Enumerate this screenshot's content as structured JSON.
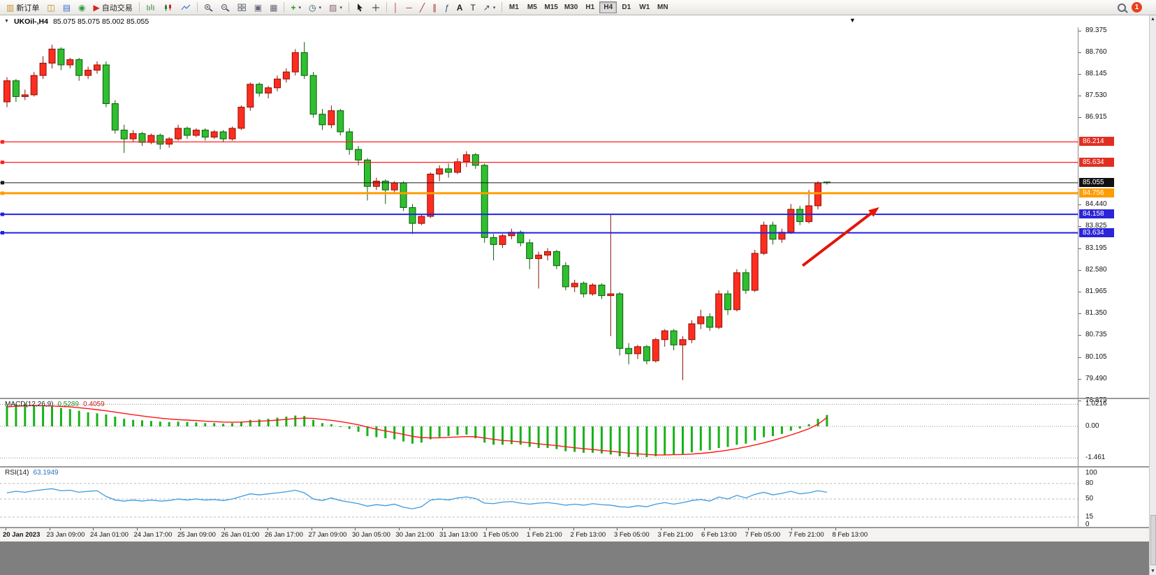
{
  "toolbar": {
    "new_order": "新订单",
    "autotrade": "自动交易",
    "timeframes": [
      "M1",
      "M5",
      "M15",
      "M30",
      "H1",
      "H4",
      "D1",
      "W1",
      "MN"
    ],
    "active_timeframe": "H4",
    "notification_count": "1"
  },
  "chart_header": {
    "symbol_period": "UKOil-,H4",
    "ohlc": "85.075 85.075 85.002 85.055"
  },
  "price_axis": {
    "badges": [
      {
        "text": "86.214",
        "color": "#e02f22"
      },
      {
        "text": "85.634",
        "color": "#e02f22"
      },
      {
        "text": "85.055",
        "color": "#111111"
      },
      {
        "text": "84.756",
        "color": "#ff9d00"
      },
      {
        "text": "84.158",
        "color": "#2b24d8"
      },
      {
        "text": "83.634",
        "color": "#2b24d8"
      }
    ]
  },
  "chart_data": [
    {
      "type": "candlestick",
      "symbol": "UKOil-",
      "timeframe": "H4",
      "title": "UKOil-,H4",
      "ohlc_display": "85.075 85.075 85.002 85.055",
      "ylim": [
        78.95,
        89.45
      ],
      "colors": {
        "up": {
          "fill": "#ff2d1f",
          "stroke": "#8a1006"
        },
        "down": {
          "fill": "#2fbf2f",
          "stroke": "#0b5c0b"
        }
      },
      "y_tick_labels": [
        "89.375",
        "88.760",
        "88.145",
        "87.530",
        "86.915",
        "84.440",
        "83.825",
        "83.195",
        "82.580",
        "81.965",
        "81.350",
        "80.735",
        "80.105",
        "79.490",
        "78.875"
      ],
      "hlines": [
        {
          "price": 86.214,
          "color": "#ff2020",
          "width": 1.2
        },
        {
          "price": 85.634,
          "color": "#ff2020",
          "width": 1.2
        },
        {
          "price": 85.055,
          "color": "#1a1a1a",
          "width": 1
        },
        {
          "price": 84.756,
          "color": "#ff9d00",
          "width": 3
        },
        {
          "price": 84.158,
          "color": "#2222e0",
          "width": 2
        },
        {
          "price": 83.634,
          "color": "#2222e0",
          "width": 2
        }
      ],
      "arrow": {
        "x1_bar": 88.3,
        "y1_price": 82.7,
        "x2_bar": 96.8,
        "y2_price": 84.36,
        "color": "#e41409"
      },
      "x_tick_labels": [
        "20 Jan 2023",
        "23 Jan 09:00",
        "24 Jan 01:00",
        "24 Jan 17:00",
        "25 Jan 09:00",
        "26 Jan 01:00",
        "26 Jan 17:00",
        "27 Jan 09:00",
        "30 Jan 05:00",
        "30 Jan 21:00",
        "31 Jan 13:00",
        "1 Feb 05:00",
        "1 Feb 21:00",
        "2 Feb 13:00",
        "3 Feb 05:00",
        "3 Feb 21:00",
        "6 Feb 13:00",
        "7 Feb 05:00",
        "7 Feb 21:00",
        "8 Feb 13:00"
      ],
      "candles": [
        [
          87.35,
          88.05,
          87.2,
          87.95
        ],
        [
          87.95,
          88.0,
          87.35,
          87.5
        ],
        [
          87.5,
          87.7,
          87.4,
          87.55
        ],
        [
          87.55,
          88.2,
          87.5,
          88.1
        ],
        [
          88.1,
          88.65,
          88.0,
          88.45
        ],
        [
          88.45,
          88.97,
          88.3,
          88.85
        ],
        [
          88.85,
          88.9,
          88.25,
          88.4
        ],
        [
          88.4,
          88.6,
          88.3,
          88.55
        ],
        [
          88.55,
          88.6,
          87.95,
          88.1
        ],
        [
          88.1,
          88.35,
          88.0,
          88.25
        ],
        [
          88.25,
          88.5,
          88.15,
          88.4
        ],
        [
          88.4,
          88.5,
          87.2,
          87.3
        ],
        [
          87.3,
          87.4,
          86.45,
          86.55
        ],
        [
          86.55,
          86.7,
          85.9,
          86.3
        ],
        [
          86.3,
          86.55,
          86.2,
          86.45
        ],
        [
          86.45,
          86.5,
          86.1,
          86.2
        ],
        [
          86.2,
          86.45,
          86.15,
          86.4
        ],
        [
          86.4,
          86.45,
          86.0,
          86.15
        ],
        [
          86.15,
          86.35,
          86.05,
          86.3
        ],
        [
          86.3,
          86.7,
          86.25,
          86.6
        ],
        [
          86.6,
          86.65,
          86.3,
          86.4
        ],
        [
          86.4,
          86.6,
          86.35,
          86.55
        ],
        [
          86.55,
          86.6,
          86.25,
          86.35
        ],
        [
          86.35,
          86.55,
          86.3,
          86.5
        ],
        [
          86.5,
          86.55,
          86.2,
          86.3
        ],
        [
          86.3,
          86.65,
          86.25,
          86.6
        ],
        [
          86.6,
          87.25,
          86.55,
          87.2
        ],
        [
          87.2,
          87.9,
          87.1,
          87.85
        ],
        [
          87.85,
          87.9,
          87.5,
          87.6
        ],
        [
          87.6,
          87.8,
          87.45,
          87.75
        ],
        [
          87.75,
          88.1,
          87.65,
          88.0
        ],
        [
          88.0,
          88.3,
          87.9,
          88.2
        ],
        [
          88.2,
          88.85,
          88.1,
          88.75
        ],
        [
          88.75,
          89.05,
          88.0,
          88.1
        ],
        [
          88.1,
          88.2,
          86.9,
          87.0
        ],
        [
          87.0,
          87.15,
          86.55,
          86.7
        ],
        [
          86.7,
          87.25,
          86.6,
          87.1
        ],
        [
          87.1,
          87.15,
          86.4,
          86.5
        ],
        [
          86.5,
          86.6,
          85.85,
          86.0
        ],
        [
          86.0,
          86.1,
          85.55,
          85.7
        ],
        [
          85.7,
          85.75,
          84.55,
          84.95
        ],
        [
          84.95,
          85.2,
          84.85,
          85.1
        ],
        [
          85.1,
          85.15,
          84.45,
          84.85
        ],
        [
          84.85,
          85.1,
          84.75,
          85.05
        ],
        [
          85.05,
          85.1,
          84.25,
          84.35
        ],
        [
          84.35,
          84.45,
          83.6,
          83.9
        ],
        [
          83.9,
          84.15,
          83.85,
          84.1
        ],
        [
          84.1,
          85.35,
          84.05,
          85.3
        ],
        [
          85.3,
          85.55,
          85.1,
          85.45
        ],
        [
          85.45,
          85.6,
          85.2,
          85.35
        ],
        [
          85.35,
          85.75,
          85.3,
          85.65
        ],
        [
          85.65,
          85.95,
          85.5,
          85.85
        ],
        [
          85.85,
          85.9,
          85.45,
          85.55
        ],
        [
          85.55,
          85.6,
          83.35,
          83.5
        ],
        [
          83.5,
          83.6,
          82.85,
          83.3
        ],
        [
          83.3,
          83.6,
          83.2,
          83.55
        ],
        [
          83.55,
          83.75,
          83.45,
          83.65
        ],
        [
          83.65,
          83.7,
          83.25,
          83.35
        ],
        [
          83.35,
          83.45,
          82.6,
          82.9
        ],
        [
          82.9,
          83.1,
          82.05,
          83.0
        ],
        [
          83.0,
          83.2,
          82.85,
          83.1
        ],
        [
          83.1,
          83.15,
          82.6,
          82.7
        ],
        [
          82.7,
          82.8,
          82.0,
          82.1
        ],
        [
          82.1,
          82.3,
          81.95,
          82.2
        ],
        [
          82.2,
          82.25,
          81.8,
          81.9
        ],
        [
          81.9,
          82.2,
          81.85,
          82.15
        ],
        [
          82.15,
          82.2,
          81.75,
          81.85
        ],
        [
          81.85,
          84.15,
          80.7,
          81.9
        ],
        [
          81.9,
          81.95,
          80.15,
          80.35
        ],
        [
          80.35,
          80.5,
          79.9,
          80.2
        ],
        [
          80.2,
          80.45,
          80.05,
          80.4
        ],
        [
          80.4,
          80.45,
          79.9,
          80.0
        ],
        [
          80.0,
          80.65,
          79.95,
          80.6
        ],
        [
          80.6,
          80.9,
          80.4,
          80.85
        ],
        [
          80.85,
          80.9,
          80.3,
          80.45
        ],
        [
          80.45,
          80.7,
          79.45,
          80.6
        ],
        [
          80.6,
          81.15,
          80.5,
          81.05
        ],
        [
          81.05,
          81.45,
          80.9,
          81.25
        ],
        [
          81.25,
          81.35,
          80.85,
          80.95
        ],
        [
          80.95,
          82.0,
          80.9,
          81.9
        ],
        [
          81.9,
          82.0,
          81.3,
          81.45
        ],
        [
          81.45,
          82.6,
          81.4,
          82.5
        ],
        [
          82.5,
          82.6,
          81.9,
          82.0
        ],
        [
          82.0,
          83.15,
          81.95,
          83.05
        ],
        [
          83.05,
          83.95,
          83.0,
          83.85
        ],
        [
          83.85,
          83.95,
          83.3,
          83.45
        ],
        [
          83.45,
          83.75,
          83.35,
          83.65
        ],
        [
          83.65,
          84.45,
          83.6,
          84.3
        ],
        [
          84.3,
          84.4,
          83.85,
          83.95
        ],
        [
          83.95,
          84.85,
          83.9,
          84.4
        ],
        [
          84.4,
          85.1,
          84.3,
          85.05
        ],
        [
          85.075,
          85.075,
          85.002,
          85.055
        ]
      ]
    },
    {
      "type": "macd",
      "params": "MACD(12,26,9)",
      "current_values": [
        "0.5289",
        "0.4059"
      ],
      "ylim": [
        -1.839,
        1.258
      ],
      "levels": [
        1.0216,
        0,
        -1.461
      ],
      "y_ticks": [
        {
          "label": "1.0216",
          "value": 1.0216
        },
        {
          "label": "0.00",
          "value": 0
        },
        {
          "label": "-1.461",
          "value": -1.461
        }
      ],
      "colors": {
        "histogram": "#18b118",
        "signal": "#ff1414"
      },
      "histogram": [
        0.95,
        1.0,
        1.02,
        0.98,
        0.92,
        0.9,
        0.85,
        0.8,
        0.72,
        0.65,
        0.6,
        0.55,
        0.45,
        0.35,
        0.3,
        0.28,
        0.25,
        0.22,
        0.2,
        0.22,
        0.2,
        0.18,
        0.15,
        0.15,
        0.12,
        0.15,
        0.22,
        0.3,
        0.32,
        0.35,
        0.4,
        0.45,
        0.5,
        0.48,
        0.3,
        0.15,
        0.1,
        0.0,
        -0.12,
        -0.25,
        -0.45,
        -0.5,
        -0.55,
        -0.6,
        -0.7,
        -0.8,
        -0.75,
        -0.6,
        -0.5,
        -0.45,
        -0.4,
        -0.38,
        -0.55,
        -0.75,
        -0.85,
        -0.85,
        -0.82,
        -0.85,
        -0.95,
        -1.0,
        -1.0,
        -1.05,
        -1.15,
        -1.18,
        -1.22,
        -1.22,
        -1.25,
        -1.3,
        -1.38,
        -1.42,
        -1.4,
        -1.42,
        -1.38,
        -1.32,
        -1.3,
        -1.28,
        -1.2,
        -1.12,
        -1.1,
        -1.0,
        -0.95,
        -0.85,
        -0.8,
        -0.65,
        -0.5,
        -0.45,
        -0.35,
        -0.2,
        -0.1,
        0.1,
        0.35,
        0.5289
      ],
      "signal": [
        0.9,
        0.93,
        0.95,
        0.96,
        0.95,
        0.94,
        0.92,
        0.9,
        0.86,
        0.82,
        0.77,
        0.72,
        0.66,
        0.6,
        0.54,
        0.48,
        0.43,
        0.38,
        0.34,
        0.31,
        0.29,
        0.27,
        0.24,
        0.22,
        0.2,
        0.19,
        0.2,
        0.22,
        0.24,
        0.26,
        0.29,
        0.32,
        0.36,
        0.38,
        0.37,
        0.32,
        0.28,
        0.22,
        0.15,
        0.07,
        -0.03,
        -0.13,
        -0.21,
        -0.29,
        -0.37,
        -0.46,
        -0.52,
        -0.53,
        -0.53,
        -0.51,
        -0.49,
        -0.47,
        -0.48,
        -0.54,
        -0.6,
        -0.65,
        -0.68,
        -0.72,
        -0.76,
        -0.81,
        -0.85,
        -0.89,
        -0.94,
        -0.99,
        -1.03,
        -1.07,
        -1.11,
        -1.15,
        -1.19,
        -1.24,
        -1.27,
        -1.3,
        -1.32,
        -1.32,
        -1.31,
        -1.3,
        -1.28,
        -1.25,
        -1.21,
        -1.16,
        -1.1,
        -1.03,
        -0.95,
        -0.86,
        -0.76,
        -0.65,
        -0.53,
        -0.4,
        -0.26,
        -0.11,
        0.1,
        0.4059
      ]
    },
    {
      "type": "rsi",
      "params": "RSI(14)",
      "current_value": "63.1949",
      "ylim": [
        -4,
        111
      ],
      "levels": [
        80,
        50,
        15
      ],
      "y_ticks": [
        {
          "label": "100",
          "value": 100
        },
        {
          "label": "80",
          "value": 80
        },
        {
          "label": "50",
          "value": 50
        },
        {
          "label": "15",
          "value": 15
        },
        {
          "label": "0",
          "value": 0
        }
      ],
      "color": "#3e9ade",
      "values": [
        62,
        65,
        63,
        66,
        68,
        70,
        66,
        67,
        63,
        65,
        66,
        55,
        48,
        46,
        48,
        46,
        48,
        46,
        47,
        50,
        48,
        50,
        48,
        49,
        47,
        50,
        55,
        60,
        58,
        60,
        62,
        64,
        67,
        62,
        50,
        47,
        52,
        47,
        44,
        41,
        36,
        39,
        37,
        40,
        34,
        31,
        35,
        48,
        50,
        48,
        52,
        54,
        51,
        42,
        41,
        44,
        45,
        42,
        40,
        42,
        43,
        41,
        38,
        40,
        38,
        41,
        39,
        38,
        35,
        34,
        37,
        35,
        40,
        43,
        40,
        43,
        47,
        49,
        46,
        54,
        50,
        57,
        52,
        59,
        63,
        58,
        61,
        65,
        60,
        62,
        66,
        63.19
      ]
    }
  ]
}
